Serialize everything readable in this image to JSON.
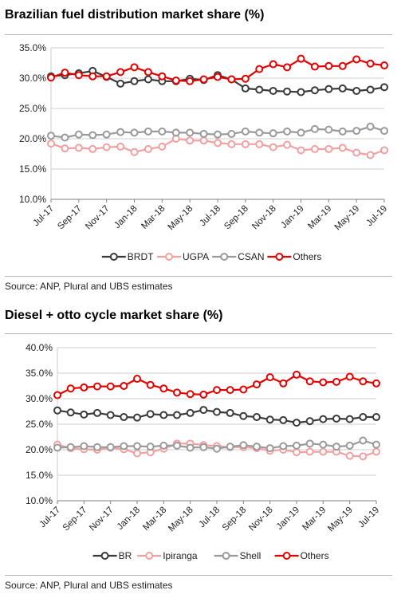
{
  "charts": [
    {
      "title": "Brazilian fuel distribution market share (%)",
      "source": "Source:  ANP, Plural and UBS estimates",
      "chart_data": {
        "type": "line",
        "x": [
          "Jul-17",
          "Aug-17",
          "Sep-17",
          "Oct-17",
          "Nov-17",
          "Dec-17",
          "Jan-18",
          "Feb-18",
          "Mar-18",
          "Apr-18",
          "May-18",
          "Jun-18",
          "Jul-18",
          "Aug-18",
          "Sep-18",
          "Oct-18",
          "Nov-18",
          "Dec-18",
          "Jan-19",
          "Feb-19",
          "Mar-19",
          "Apr-19",
          "May-19",
          "Jun-19",
          "Jul-19"
        ],
        "tick_labels": [
          "Jul-17",
          "Sep-17",
          "Nov-17",
          "Jan-18",
          "Mar-18",
          "May-18",
          "Jul-18",
          "Sep-18",
          "Nov-18",
          "Jan-19",
          "Mar-19",
          "May-19",
          "Jul-19"
        ],
        "y_ticks": [
          "10.0%",
          "15.0%",
          "20.0%",
          "25.0%",
          "30.0%",
          "35.0%"
        ],
        "ylim": [
          10,
          35
        ],
        "legend_position": "bottom",
        "grid": "horizontal",
        "series": [
          {
            "name": "BRDT",
            "color": "#3a3a3a",
            "values": [
              30.3,
              30.5,
              30.8,
              31.2,
              30.2,
              29.1,
              29.5,
              29.8,
              29.5,
              29.5,
              29.9,
              29.7,
              30.5,
              29.8,
              28.3,
              28.1,
              27.9,
              27.8,
              27.7,
              28.0,
              28.2,
              28.3,
              27.9,
              28.1,
              28.5
            ]
          },
          {
            "name": "UGPA",
            "color": "#f2a0a0",
            "values": [
              19.2,
              18.4,
              18.5,
              18.3,
              18.6,
              18.7,
              17.8,
              18.3,
              18.7,
              20.0,
              19.7,
              19.7,
              19.3,
              19.1,
              19.1,
              19.1,
              18.6,
              19.0,
              18.1,
              18.3,
              18.3,
              18.5,
              17.7,
              17.3,
              18.1
            ]
          },
          {
            "name": "CSAN",
            "color": "#9a9a9a",
            "values": [
              20.5,
              20.2,
              20.7,
              20.6,
              20.7,
              21.1,
              21.0,
              21.2,
              21.2,
              21.0,
              21.0,
              20.8,
              20.7,
              20.8,
              21.2,
              21.0,
              20.9,
              21.2,
              21.0,
              21.6,
              21.5,
              21.2,
              21.3,
              22.0,
              21.3
            ]
          },
          {
            "name": "Others",
            "color": "#e40000",
            "values": [
              30.1,
              30.9,
              30.5,
              30.3,
              30.3,
              31.0,
              31.8,
              31.0,
              30.3,
              29.6,
              29.5,
              29.8,
              30.2,
              29.8,
              29.9,
              31.5,
              32.3,
              31.8,
              33.2,
              31.9,
              32.0,
              32.0,
              33.1,
              32.4,
              32.1
            ]
          }
        ]
      }
    },
    {
      "title": "Diesel + otto cycle market share (%)",
      "source": "Source:  ANP, Plural and UBS estimates",
      "chart_data": {
        "type": "line",
        "x": [
          "Jul-17",
          "Aug-17",
          "Sep-17",
          "Oct-17",
          "Nov-17",
          "Dec-17",
          "Jan-18",
          "Feb-18",
          "Mar-18",
          "Apr-18",
          "May-18",
          "Jun-18",
          "Jul-18",
          "Aug-18",
          "Sep-18",
          "Oct-18",
          "Nov-18",
          "Dec-18",
          "Jan-19",
          "Feb-19",
          "Mar-19",
          "Apr-19",
          "May-19",
          "Jun-19",
          "Jul-19"
        ],
        "tick_labels": [
          "Jul-17",
          "Sep-17",
          "Nov-17",
          "Jan-18",
          "Mar-18",
          "May-18",
          "Jul-18",
          "Sep-18",
          "Nov-18",
          "Jan-19",
          "Mar-19",
          "May-19",
          "Jul-19"
        ],
        "y_ticks": [
          "10.0%",
          "15.0%",
          "20.0%",
          "25.0%",
          "30.0%",
          "35.0%",
          "40.0%"
        ],
        "ylim": [
          10,
          40
        ],
        "legend_position": "bottom",
        "grid": "horizontal",
        "series": [
          {
            "name": "BR",
            "color": "#3a3a3a",
            "values": [
              27.7,
              27.3,
              26.9,
              27.2,
              26.8,
              26.4,
              26.3,
              27.0,
              26.8,
              26.8,
              27.2,
              27.8,
              27.4,
              27.2,
              26.6,
              26.4,
              25.9,
              25.8,
              25.3,
              25.6,
              26.0,
              26.1,
              26.0,
              26.4,
              26.4
            ]
          },
          {
            "name": "Ipiranga",
            "color": "#f2a0a0",
            "values": [
              21.0,
              20.3,
              20.1,
              20.0,
              20.4,
              20.1,
              19.3,
              19.5,
              20.2,
              21.2,
              21.2,
              20.9,
              20.7,
              20.5,
              20.5,
              20.3,
              19.8,
              20.0,
              19.5,
              19.6,
              19.6,
              19.6,
              18.8,
              18.7,
              19.6
            ]
          },
          {
            "name": "Shell",
            "color": "#9a9a9a",
            "values": [
              20.4,
              20.5,
              20.7,
              20.5,
              20.5,
              20.7,
              20.7,
              20.6,
              20.8,
              20.8,
              20.4,
              20.5,
              20.2,
              20.6,
              20.9,
              20.6,
              20.3,
              20.7,
              20.8,
              21.2,
              21.0,
              20.6,
              20.8,
              21.8,
              21.0
            ]
          },
          {
            "name": "Others",
            "color": "#e40000",
            "values": [
              30.7,
              32.0,
              32.2,
              32.4,
              32.4,
              32.5,
              33.9,
              32.7,
              32.0,
              31.2,
              30.9,
              30.8,
              31.7,
              31.7,
              31.8,
              32.8,
              34.2,
              33.0,
              34.7,
              33.4,
              33.2,
              33.3,
              34.3,
              33.4,
              33.0
            ]
          }
        ]
      }
    }
  ]
}
